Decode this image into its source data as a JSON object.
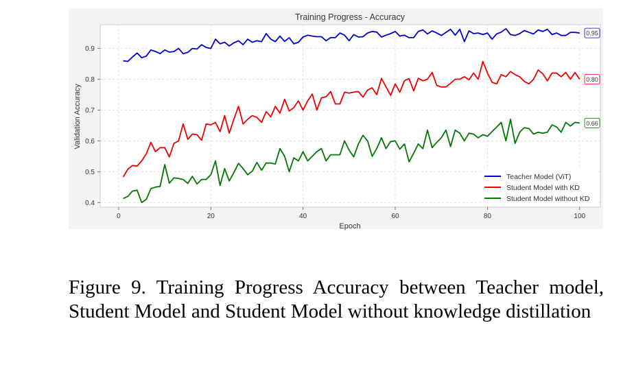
{
  "chart_data": {
    "type": "line",
    "title": "Training Progress - Accuracy",
    "xlabel": "Epoch",
    "ylabel": "Validation Accuracy",
    "xlim": [
      -4,
      104.5
    ],
    "ylim": [
      0.385,
      0.977
    ],
    "x_ticks": [
      0,
      20,
      40,
      60,
      80,
      100
    ],
    "y_ticks": [
      0.4,
      0.5,
      0.6,
      0.7,
      0.8,
      0.9
    ],
    "grid": true,
    "legend_position": "lower-right",
    "series": [
      {
        "name": "Teacher Model (ViT)",
        "color": "#0000cc",
        "end_label": "0.95",
        "values": [
          0.86,
          0.858,
          0.872,
          0.885,
          0.87,
          0.875,
          0.895,
          0.89,
          0.883,
          0.895,
          0.888,
          0.89,
          0.9,
          0.883,
          0.887,
          0.9,
          0.898,
          0.912,
          0.903,
          0.9,
          0.93,
          0.915,
          0.92,
          0.908,
          0.918,
          0.925,
          0.912,
          0.93,
          0.92,
          0.925,
          0.922,
          0.948,
          0.93,
          0.922,
          0.94,
          0.923,
          0.935,
          0.915,
          0.92,
          0.937,
          0.943,
          0.94,
          0.938,
          0.938,
          0.925,
          0.935,
          0.935,
          0.95,
          0.943,
          0.925,
          0.945,
          0.937,
          0.938,
          0.95,
          0.955,
          0.953,
          0.937,
          0.943,
          0.948,
          0.955,
          0.94,
          0.943,
          0.935,
          0.935,
          0.955,
          0.96,
          0.947,
          0.957,
          0.95,
          0.942,
          0.952,
          0.962,
          0.943,
          0.962,
          0.922,
          0.957,
          0.948,
          0.95,
          0.945,
          0.95,
          0.93,
          0.947,
          0.953,
          0.964,
          0.945,
          0.942,
          0.948,
          0.958,
          0.952,
          0.947,
          0.96,
          0.955,
          0.962,
          0.945,
          0.95,
          0.942,
          0.942,
          0.952,
          0.952,
          0.95
        ]
      },
      {
        "name": "Student Model with KD",
        "color": "#ee0000",
        "end_label": "0.80",
        "values": [
          0.483,
          0.508,
          0.52,
          0.518,
          0.535,
          0.558,
          0.595,
          0.565,
          0.578,
          0.578,
          0.548,
          0.592,
          0.6,
          0.655,
          0.605,
          0.622,
          0.62,
          0.602,
          0.655,
          0.652,
          0.66,
          0.63,
          0.682,
          0.625,
          0.67,
          0.712,
          0.655,
          0.67,
          0.682,
          0.676,
          0.66,
          0.695,
          0.678,
          0.712,
          0.69,
          0.735,
          0.697,
          0.708,
          0.73,
          0.7,
          0.73,
          0.752,
          0.7,
          0.74,
          0.743,
          0.76,
          0.72,
          0.72,
          0.758,
          0.755,
          0.758,
          0.76,
          0.742,
          0.765,
          0.772,
          0.75,
          0.803,
          0.775,
          0.748,
          0.785,
          0.758,
          0.795,
          0.802,
          0.762,
          0.803,
          0.795,
          0.8,
          0.822,
          0.78,
          0.775,
          0.775,
          0.787,
          0.8,
          0.8,
          0.808,
          0.798,
          0.82,
          0.8,
          0.858,
          0.82,
          0.79,
          0.785,
          0.815,
          0.808,
          0.825,
          0.815,
          0.808,
          0.793,
          0.785,
          0.8,
          0.83,
          0.818,
          0.795,
          0.82,
          0.82,
          0.808,
          0.822,
          0.8,
          0.822,
          0.8
        ]
      },
      {
        "name": "Student Model without KD",
        "color": "#007700",
        "end_label": "0.66",
        "values": [
          0.413,
          0.42,
          0.437,
          0.44,
          0.4,
          0.41,
          0.445,
          0.45,
          0.452,
          0.523,
          0.463,
          0.48,
          0.478,
          0.475,
          0.462,
          0.485,
          0.46,
          0.475,
          0.475,
          0.49,
          0.535,
          0.455,
          0.51,
          0.47,
          0.497,
          0.527,
          0.51,
          0.49,
          0.502,
          0.53,
          0.505,
          0.528,
          0.528,
          0.525,
          0.575,
          0.55,
          0.5,
          0.545,
          0.535,
          0.565,
          0.535,
          0.55,
          0.565,
          0.575,
          0.535,
          0.555,
          0.555,
          0.555,
          0.6,
          0.57,
          0.548,
          0.59,
          0.618,
          0.6,
          0.55,
          0.575,
          0.61,
          0.575,
          0.598,
          0.6,
          0.573,
          0.59,
          0.532,
          0.56,
          0.59,
          0.575,
          0.635,
          0.578,
          0.595,
          0.61,
          0.635,
          0.582,
          0.635,
          0.625,
          0.6,
          0.625,
          0.622,
          0.61,
          0.62,
          0.615,
          0.63,
          0.645,
          0.66,
          0.6,
          0.67,
          0.592,
          0.628,
          0.643,
          0.64,
          0.622,
          0.628,
          0.625,
          0.628,
          0.652,
          0.645,
          0.628,
          0.66,
          0.648,
          0.66,
          0.658
        ]
      }
    ]
  },
  "caption": "Figure 9. Training Progress Accuracy between Teacher model, Student Model and Student Model without knowledge distillation"
}
